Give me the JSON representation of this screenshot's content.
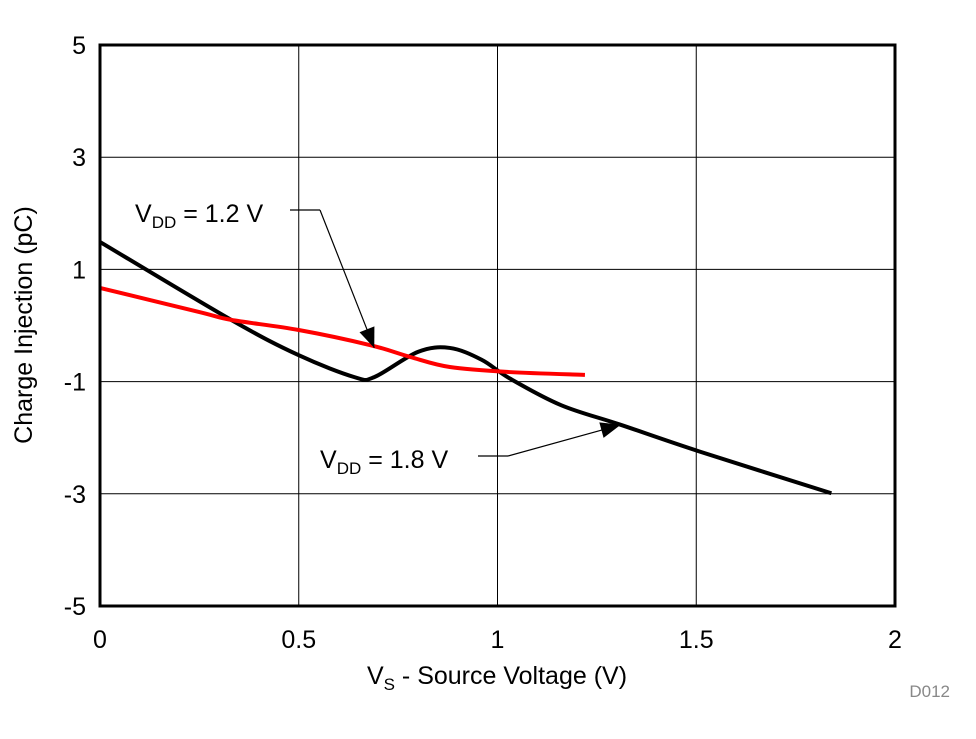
{
  "chart_data": {
    "type": "line",
    "xlabel": {
      "main": "V",
      "sub": "S",
      "rest": " - Source Voltage (V)"
    },
    "ylabel": "Charge Injection (pC)",
    "xlim": [
      0,
      2
    ],
    "ylim": [
      -5,
      5
    ],
    "xticks": [
      0,
      0.5,
      1,
      1.5,
      2
    ],
    "xtick_labels": [
      "0",
      "0.5",
      "1",
      "1.5",
      "2"
    ],
    "yticks": [
      -5,
      -3,
      -1,
      1,
      3,
      5
    ],
    "ytick_labels": [
      "-5",
      "-3",
      "-1",
      "1",
      "3",
      "5"
    ],
    "grid": true,
    "watermark": "D012",
    "series": [
      {
        "name": "VDD = 1.8 V",
        "color": "#000000",
        "x": [
          0,
          0.33,
          0.5,
          0.64,
          0.69,
          0.8,
          0.88,
          0.96,
          1.03,
          1.16,
          1.31,
          1.51,
          1.84
        ],
        "y": [
          1.49,
          0.1,
          -0.53,
          -0.92,
          -0.92,
          -0.47,
          -0.4,
          -0.61,
          -0.94,
          -1.42,
          -1.77,
          -2.25,
          -2.99
        ]
      },
      {
        "name": "VDD = 1.2 V",
        "color": "#ff0000",
        "x": [
          0,
          0.25,
          0.33,
          0.5,
          0.68,
          0.78,
          0.88,
          1.03,
          1.22
        ],
        "y": [
          0.67,
          0.24,
          0.1,
          -0.08,
          -0.35,
          -0.56,
          -0.74,
          -0.83,
          -0.88
        ]
      }
    ],
    "annotations": [
      {
        "main": "V",
        "sub": "DD",
        "rest": " = 1.2 V",
        "points_to": [
          0.69,
          -0.4
        ]
      },
      {
        "main": "V",
        "sub": "DD",
        "rest": " = 1.8 V",
        "points_to": [
          1.31,
          -1.77
        ]
      }
    ]
  }
}
